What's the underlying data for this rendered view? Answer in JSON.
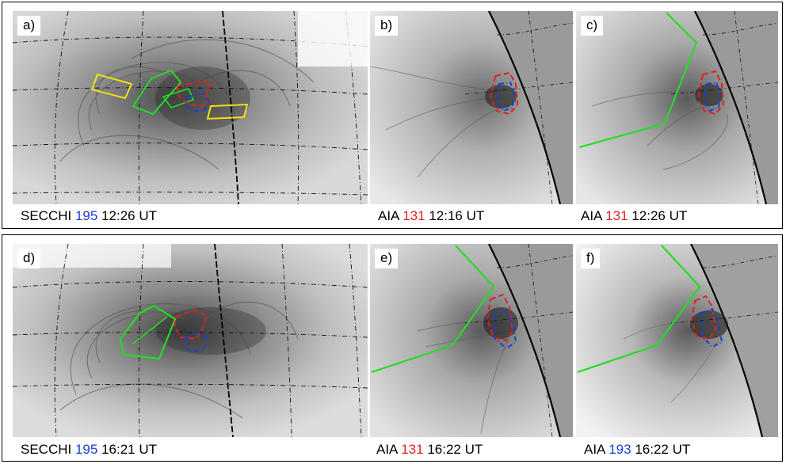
{
  "panels": [
    {
      "label": "a)",
      "instrument": "SECCHI",
      "channel": "195",
      "channel_color": "#1a3fd6",
      "time": "12:26 UT"
    },
    {
      "label": "b)",
      "instrument": "AIA",
      "channel": "131",
      "channel_color": "#e02020",
      "time": "12:16 UT"
    },
    {
      "label": "c)",
      "instrument": "AIA",
      "channel": "131",
      "channel_color": "#e02020",
      "time": "12:26 UT"
    },
    {
      "label": "d)",
      "instrument": "SECCHI",
      "channel": "195",
      "channel_color": "#1a3fd6",
      "time": "16:21 UT"
    },
    {
      "label": "e)",
      "instrument": "AIA",
      "channel": "131",
      "channel_color": "#e02020",
      "time": "16:22 UT"
    },
    {
      "label": "f)",
      "instrument": "AIA",
      "channel": "193",
      "channel_color": "#1a3fd6",
      "time": "16:22 UT"
    }
  ],
  "colors": {
    "contour_red": "#e02020",
    "contour_blue": "#1a3fd6",
    "box_green": "#22dd22",
    "box_yellow": "#f2e010"
  }
}
